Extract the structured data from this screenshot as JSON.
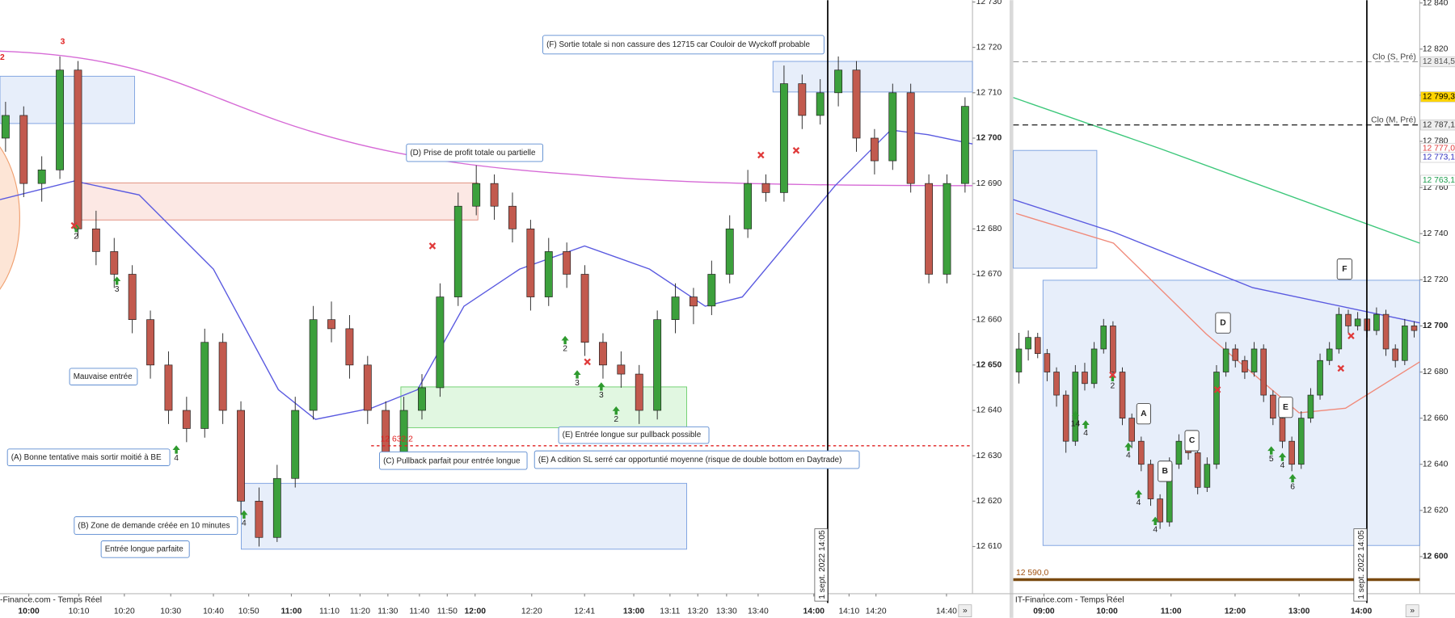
{
  "left_panel": {
    "ylim": [
      12599.6,
      12730.4
    ],
    "yticks": [
      {
        "value": 12610,
        "label": "12 610"
      },
      {
        "value": 12620,
        "label": "12 620"
      },
      {
        "value": 12630,
        "label": "12 630"
      },
      {
        "value": 12640,
        "label": "12 640"
      },
      {
        "value": 12650,
        "label": "12 650"
      },
      {
        "value": 12660,
        "label": "12 660"
      },
      {
        "value": 12670,
        "label": "12 670"
      },
      {
        "value": 12680,
        "label": "12 680"
      },
      {
        "value": 12690,
        "label": "12 690"
      },
      {
        "value": 12700,
        "label": "12 700"
      },
      {
        "value": 12710,
        "label": "12 710"
      },
      {
        "value": 12720,
        "label": "12 720"
      },
      {
        "value": 12730,
        "label": "12 730"
      }
    ],
    "xticks": [
      "10:00",
      "10:10",
      "10:20",
      "10:30",
      "10:40",
      "10:50",
      "11:00",
      "11:10",
      "11:20",
      "11:30",
      "11:40",
      "11:50",
      "12:00",
      "12:20",
      "12:41",
      "13:00",
      "13:11",
      "13:20",
      "13:30",
      "13:40",
      "14:00",
      "14:10",
      "14:20",
      "14:40"
    ],
    "candles": [
      [
        12700,
        12708,
        12697,
        12705
      ],
      [
        12705,
        12707,
        12687,
        12690
      ],
      [
        12690,
        12696,
        12686,
        12693
      ],
      [
        12693,
        12718,
        12691,
        12715
      ],
      [
        12715,
        12717,
        12678,
        12680
      ],
      [
        12680,
        12684,
        12672,
        12675
      ],
      [
        12675,
        12678,
        12667,
        12670
      ],
      [
        12670,
        12672,
        12657,
        12660
      ],
      [
        12660,
        12662,
        12647,
        12650
      ],
      [
        12650,
        12653,
        12637,
        12640
      ],
      [
        12640,
        12643,
        12633,
        12636
      ],
      [
        12636,
        12658,
        12634,
        12655
      ],
      [
        12655,
        12657,
        12637,
        12640
      ],
      [
        12640,
        12642,
        12617,
        12620
      ],
      [
        12620,
        12623,
        12610,
        12612
      ],
      [
        12612,
        12628,
        12611,
        12625
      ],
      [
        12625,
        12643,
        12623,
        12640
      ],
      [
        12640,
        12663,
        12638,
        12660
      ],
      [
        12660,
        12664,
        12655,
        12658
      ],
      [
        12658,
        12661,
        12647,
        12650
      ],
      [
        12650,
        12652,
        12637,
        12640
      ],
      [
        12640,
        12642,
        12628,
        12630
      ],
      [
        12630,
        12643,
        12629,
        12640
      ],
      [
        12640,
        12648,
        12638,
        12645
      ],
      [
        12645,
        12668,
        12643,
        12665
      ],
      [
        12665,
        12688,
        12663,
        12685
      ],
      [
        12685,
        12694,
        12683,
        12690
      ],
      [
        12690,
        12692,
        12682,
        12685
      ],
      [
        12685,
        12688,
        12677,
        12680
      ],
      [
        12680,
        12682,
        12662,
        12665
      ],
      [
        12665,
        12678,
        12663,
        12675
      ],
      [
        12675,
        12677,
        12667,
        12670
      ],
      [
        12670,
        12672,
        12652,
        12655
      ],
      [
        12655,
        12657,
        12647,
        12650
      ],
      [
        12650,
        12653,
        12645,
        12648
      ],
      [
        12648,
        12650,
        12637,
        12640
      ],
      [
        12640,
        12662,
        12638,
        12660
      ],
      [
        12660,
        12668,
        12657,
        12665
      ],
      [
        12665,
        12667,
        12659,
        12663
      ],
      [
        12663,
        12673,
        12661,
        12670
      ],
      [
        12670,
        12683,
        12668,
        12680
      ],
      [
        12680,
        12693,
        12678,
        12690
      ],
      [
        12690,
        12692,
        12686,
        12688
      ],
      [
        12688,
        12716,
        12686,
        12712
      ],
      [
        12712,
        12714,
        12702,
        12705
      ],
      [
        12705,
        12713,
        12703,
        12710
      ],
      [
        12710,
        12718,
        12707,
        12715
      ],
      [
        12715,
        12717,
        12697,
        12700
      ],
      [
        12700,
        12702,
        12692,
        12695
      ],
      [
        12695,
        12712,
        12693,
        12710
      ],
      [
        12710,
        12712,
        12688,
        12690
      ],
      [
        12690,
        12692,
        12668,
        12670
      ],
      [
        12670,
        12692,
        12668,
        12690
      ],
      [
        12690,
        12709,
        12688,
        12707
      ]
    ],
    "level": {
      "value": 12632.2,
      "label": "12 632,2"
    },
    "annotations": [
      "(F) Sortie totale si non cassure des 12715 car Couloir de Wyckoff probable",
      "(D) Prise de profit totale ou partielle",
      "Mauvaise entrée",
      "(A) Bonne tentative mais sortir moitié à BE",
      "(C) Pullback parfait pour entrée longue",
      "(E) Entrée longue sur pullback possible",
      "(E) A cdition SL serré car opportuntié moyenne (risque de double bottom en Daytrade)",
      "(B) Zone de demande créée en 10 minutes",
      "Entrée longue parfaite"
    ],
    "wave_labels": [
      "2",
      "3"
    ],
    "signal_counts": [
      "2",
      "3",
      "4",
      "4",
      "2",
      "3",
      "3",
      "2"
    ],
    "cursor_date": "1 sept. 2022 14:05",
    "source": "-Finance.com - Temps Réel",
    "scroll_button": "»"
  },
  "right_panel": {
    "ylim": [
      12583.9,
      12841.2
    ],
    "yticks": [
      {
        "value": 12600,
        "label": "12 600"
      },
      {
        "value": 12620,
        "label": "12 620"
      },
      {
        "value": 12640,
        "label": "12 640"
      },
      {
        "value": 12660,
        "label": "12 660"
      },
      {
        "value": 12680,
        "label": "12 680"
      },
      {
        "value": 12700,
        "label": "12 700"
      },
      {
        "value": 12720,
        "label": "12 720"
      },
      {
        "value": 12740,
        "label": "12 740"
      },
      {
        "value": 12760,
        "label": "12 760"
      },
      {
        "value": 12780,
        "label": "12 780"
      },
      {
        "value": 12800,
        "label": "12 800"
      },
      {
        "value": 12820,
        "label": "12 820"
      },
      {
        "value": 12840,
        "label": "12 840"
      }
    ],
    "xticks": [
      "09:00",
      "10:00",
      "11:00",
      "12:00",
      "13:00",
      "14:00"
    ],
    "candles": [
      [
        12680,
        12697,
        12675,
        12690
      ],
      [
        12690,
        12698,
        12685,
        12695
      ],
      [
        12695,
        12697,
        12686,
        12688
      ],
      [
        12688,
        12690,
        12676,
        12680
      ],
      [
        12680,
        12682,
        12665,
        12670
      ],
      [
        12670,
        12672,
        12645,
        12650
      ],
      [
        12650,
        12683,
        12648,
        12680
      ],
      [
        12680,
        12684,
        12672,
        12675
      ],
      [
        12675,
        12693,
        12673,
        12690
      ],
      [
        12690,
        12703,
        12688,
        12700
      ],
      [
        12700,
        12702,
        12677,
        12680
      ],
      [
        12680,
        12682,
        12657,
        12660
      ],
      [
        12660,
        12662,
        12647,
        12650
      ],
      [
        12650,
        12652,
        12637,
        12640
      ],
      [
        12640,
        12642,
        12622,
        12625
      ],
      [
        12625,
        12627,
        12612,
        12615
      ],
      [
        12615,
        12643,
        12613,
        12640
      ],
      [
        12640,
        12653,
        12638,
        12650
      ],
      [
        12650,
        12652,
        12642,
        12645
      ],
      [
        12645,
        12647,
        12627,
        12630
      ],
      [
        12630,
        12643,
        12628,
        12640
      ],
      [
        12640,
        12683,
        12638,
        12680
      ],
      [
        12680,
        12693,
        12678,
        12690
      ],
      [
        12690,
        12692,
        12682,
        12685
      ],
      [
        12685,
        12687,
        12677,
        12680
      ],
      [
        12680,
        12693,
        12678,
        12690
      ],
      [
        12690,
        12692,
        12667,
        12670
      ],
      [
        12670,
        12672,
        12657,
        12660
      ],
      [
        12660,
        12662,
        12647,
        12650
      ],
      [
        12650,
        12652,
        12637,
        12640
      ],
      [
        12640,
        12663,
        12638,
        12660
      ],
      [
        12660,
        12673,
        12658,
        12670
      ],
      [
        12670,
        12688,
        12668,
        12685
      ],
      [
        12685,
        12693,
        12683,
        12690
      ],
      [
        12690,
        12708,
        12688,
        12705
      ],
      [
        12705,
        12707,
        12697,
        12700
      ],
      [
        12700,
        12706,
        12698,
        12703
      ],
      [
        12703,
        12705,
        12695,
        12698
      ],
      [
        12698,
        12708,
        12696,
        12705
      ],
      [
        12705,
        12707,
        12687,
        12690
      ],
      [
        12690,
        12692,
        12682,
        12685
      ],
      [
        12685,
        12703,
        12683,
        12700
      ],
      [
        12700,
        12702,
        12695,
        12698
      ]
    ],
    "level": {
      "value": 12590,
      "label": "12 590,0"
    },
    "reference_lines": [
      {
        "name": "Clo (S, Pré)",
        "value": 12814.5,
        "color": "#999999"
      },
      {
        "name": "Clo (M, Pré)",
        "value": 12787.1,
        "color": "#000000"
      }
    ],
    "price_tags": [
      {
        "value": 12814.5,
        "label": "12 814,5",
        "color": "#555555",
        "background": "#eeeeee"
      },
      {
        "value": 12799.3,
        "label": "12 799,3",
        "color": "#000000",
        "background": "#ffd400"
      },
      {
        "value": 12787.1,
        "label": "12 787,1",
        "color": "#333333",
        "background": "#eeeeee"
      },
      {
        "value": 12777,
        "label": "12 777,0",
        "color": "#e04040",
        "background": "#ffffff"
      },
      {
        "value": 12773.1,
        "label": "12 773,1",
        "color": "#3030c0",
        "background": "#ffffff"
      },
      {
        "value": 12763.1,
        "label": "12 763,1",
        "color": "#20a050",
        "background": "#ffffff"
      }
    ],
    "letters": [
      "A",
      "B",
      "C",
      "D",
      "E",
      "F"
    ],
    "signal_counts": [
      "2",
      "14",
      "4",
      "4",
      "4",
      "4",
      "5",
      "4",
      "6"
    ],
    "cursor_date": "1 sept. 2022 14:05",
    "source": "IT-Finance.com - Temps Réel",
    "scroll_button": "»"
  }
}
